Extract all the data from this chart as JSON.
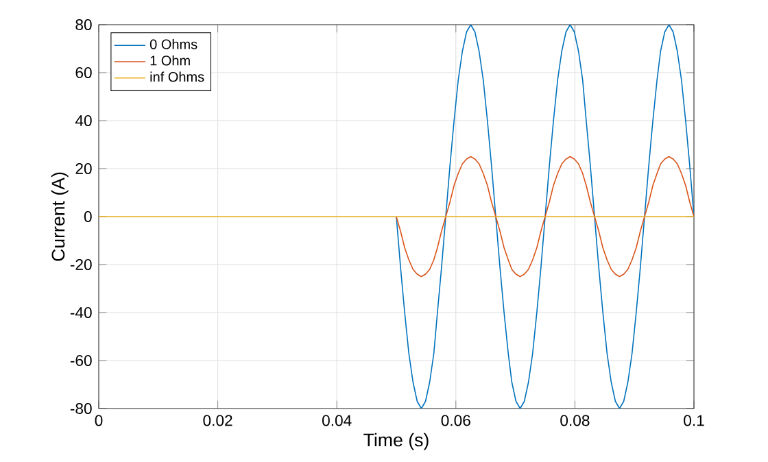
{
  "chart_data": {
    "type": "line",
    "xlabel": "Time (s)",
    "ylabel": "Current (A)",
    "xlim": [
      0,
      0.1
    ],
    "ylim": [
      -80,
      80
    ],
    "xticks": [
      0,
      0.02,
      0.04,
      0.06,
      0.08,
      0.1
    ],
    "yticks": [
      -80,
      -60,
      -40,
      -20,
      0,
      20,
      40,
      60,
      80
    ],
    "grid": true,
    "legend": "top left",
    "line_style": "solid",
    "marker": "none",
    "x": [
      0.05,
      0.0507,
      0.0514,
      0.0521,
      0.0528,
      0.0535,
      0.0542,
      0.0549,
      0.0556,
      0.0563,
      0.0569,
      0.0576,
      0.0583,
      0.059,
      0.0597,
      0.0604,
      0.0611,
      0.0618,
      0.0625,
      0.0632,
      0.0639,
      0.0646,
      0.0653,
      0.066,
      0.0667,
      0.0674,
      0.0681,
      0.0688,
      0.0694,
      0.0701,
      0.0708,
      0.0715,
      0.0722,
      0.0729,
      0.0736,
      0.0743,
      0.075,
      0.0757,
      0.0764,
      0.0771,
      0.0778,
      0.0785,
      0.0792,
      0.0799,
      0.0806,
      0.0813,
      0.0819,
      0.0826,
      0.0833,
      0.084,
      0.0847,
      0.0854,
      0.0861,
      0.0868,
      0.0875,
      0.0882,
      0.0889,
      0.0896,
      0.0903,
      0.091,
      0.0917,
      0.0924,
      0.0931,
      0.0938,
      0.0944,
      0.0951,
      0.0958,
      0.0965,
      0.0972,
      0.0979,
      0.0986,
      0.0993,
      0.1
    ],
    "series": [
      {
        "name": "0 Ohms",
        "color": "#0072bd",
        "values": [
          0,
          -21,
          -40,
          -57,
          -69,
          -77,
          -80,
          -77,
          -69,
          -57,
          -40,
          -21,
          0,
          21,
          40,
          57,
          69,
          77,
          80,
          77,
          69,
          57,
          40,
          21,
          0,
          -21,
          -40,
          -57,
          -69,
          -77,
          -80,
          -77,
          -69,
          -57,
          -40,
          -21,
          0,
          21,
          40,
          57,
          69,
          77,
          80,
          77,
          69,
          57,
          40,
          21,
          0,
          -21,
          -40,
          -57,
          -69,
          -77,
          -80,
          -77,
          -69,
          -57,
          -40,
          -21,
          0,
          21,
          40,
          57,
          69,
          77,
          80,
          77,
          69,
          57,
          40,
          21,
          0
        ]
      },
      {
        "name": "1 Ohm",
        "color": "#d95319",
        "values": [
          0,
          -6,
          -13,
          -18,
          -22,
          -24,
          -25,
          -24,
          -22,
          -18,
          -13,
          -6,
          0,
          6,
          13,
          18,
          22,
          24,
          25,
          24,
          22,
          18,
          13,
          6,
          0,
          -6,
          -13,
          -18,
          -22,
          -24,
          -25,
          -24,
          -22,
          -18,
          -13,
          -6,
          0,
          6,
          13,
          18,
          22,
          24,
          25,
          24,
          22,
          18,
          13,
          6,
          0,
          -6,
          -13,
          -18,
          -22,
          -24,
          -25,
          -24,
          -22,
          -18,
          -13,
          -6,
          0,
          6,
          13,
          18,
          22,
          24,
          25,
          24,
          22,
          18,
          13,
          6,
          0
        ]
      },
      {
        "name": "inf Ohms",
        "color": "#edb120",
        "x": [
          0,
          0.1
        ],
        "values": [
          0,
          0
        ]
      }
    ]
  }
}
